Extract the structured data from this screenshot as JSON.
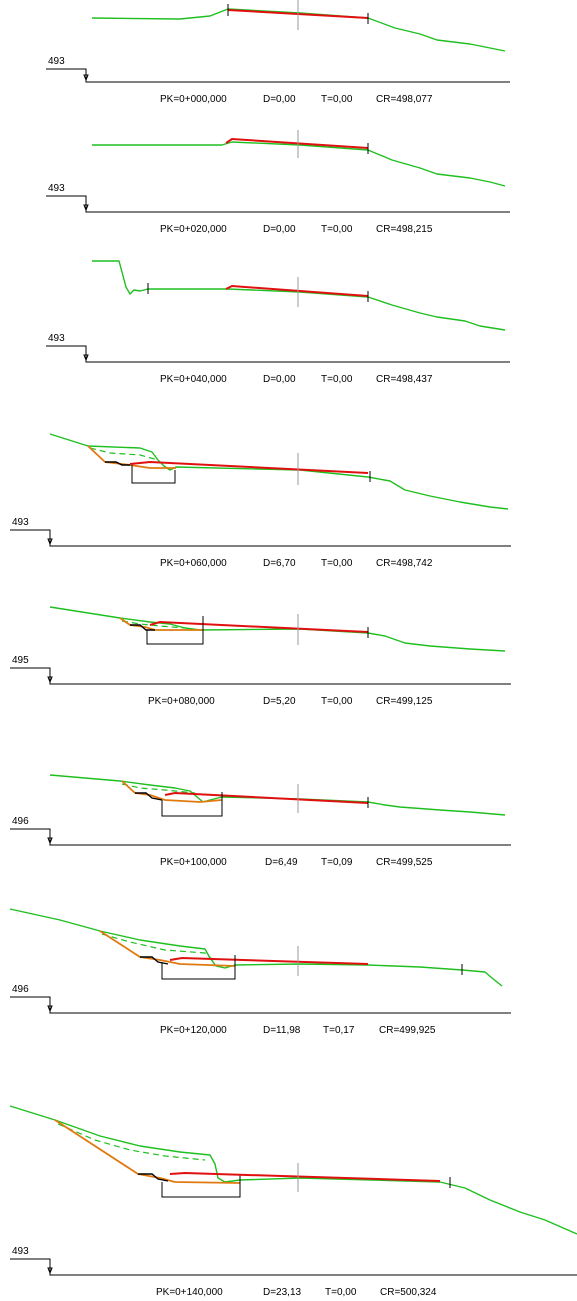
{
  "colors": {
    "terrain": "#1fbf1f",
    "road": "#e01010",
    "slope": "#e07a10",
    "frame": "#000000",
    "axis": "#9a9a9a"
  },
  "sections": [
    {
      "datum": "493",
      "pk": "PK=0+000,000",
      "d": "D=0,00",
      "t": "T=0,00",
      "cr": "CR=498,077"
    },
    {
      "datum": "493",
      "pk": "PK=0+020,000",
      "d": "D=0,00",
      "t": "T=0,00",
      "cr": "CR=498,215"
    },
    {
      "datum": "493",
      "pk": "PK=0+040,000",
      "d": "D=0,00",
      "t": "T=0,00",
      "cr": "CR=498,437"
    },
    {
      "datum": "493",
      "pk": "PK=0+060,000",
      "d": "D=6,70",
      "t": "T=0,00",
      "cr": "CR=498,742"
    },
    {
      "datum": "495",
      "pk": "PK=0+080,000",
      "d": "D=5,20",
      "t": "T=0,00",
      "cr": "CR=499,125"
    },
    {
      "datum": "496",
      "pk": "PK=0+100,000",
      "d": "D=6,49",
      "t": "T=0,09",
      "cr": "CR=499,525"
    },
    {
      "datum": "496",
      "pk": "PK=0+120,000",
      "d": "D=11,98",
      "t": "T=0,17",
      "cr": "CR=499,925"
    },
    {
      "datum": "493",
      "pk": "PK=0+140,000",
      "d": "D=23,13",
      "t": "T=0,00",
      "cr": "CR=500,324"
    }
  ]
}
